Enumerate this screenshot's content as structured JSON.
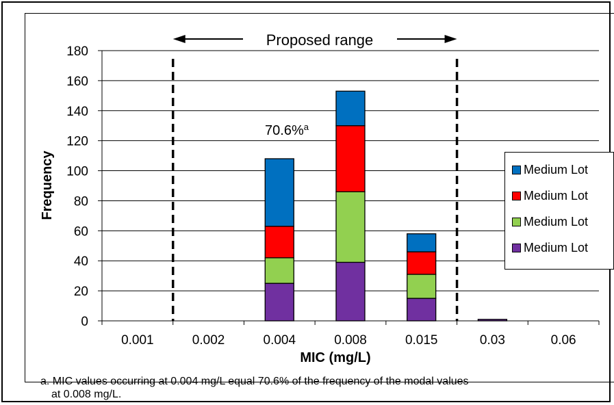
{
  "chart_data": {
    "type": "bar",
    "stacked": true,
    "categories": [
      "0.001",
      "0.002",
      "0.004",
      "0.008",
      "0.015",
      "0.03",
      "0.06"
    ],
    "series": [
      {
        "name": "Medium Lot",
        "color": "#7030a0",
        "values": [
          0,
          0,
          25,
          39,
          15,
          1,
          0
        ]
      },
      {
        "name": "Medium Lot",
        "color": "#92d050",
        "values": [
          0,
          0,
          17,
          47,
          16,
          0,
          0
        ]
      },
      {
        "name": "Medium Lot",
        "color": "#ff0000",
        "values": [
          0,
          0,
          21,
          44,
          15,
          0,
          0
        ]
      },
      {
        "name": "Medium Lot",
        "color": "#0070c0",
        "values": [
          0,
          0,
          45,
          23,
          12,
          0,
          0
        ]
      }
    ],
    "legend_order": [
      3,
      2,
      1,
      0
    ],
    "xlabel": "MIC (mg/L)",
    "ylabel": "Frequency",
    "ylim": [
      0,
      180
    ],
    "yticks": [
      0,
      20,
      40,
      60,
      80,
      100,
      120,
      140,
      160,
      180
    ],
    "grid": true,
    "legend_position": "right",
    "proposed_range": {
      "label": "Proposed range",
      "from_between": [
        "0.001",
        "0.002"
      ],
      "to_between": [
        "0.015",
        "0.03"
      ]
    },
    "annotation": {
      "text": "70.6%",
      "superscript": "a",
      "category": "0.004"
    }
  },
  "footnote": {
    "line1": "a. MIC values occurring at 0.004 mg/L equal 70.6% of the frequency of the modal values",
    "line2": "at 0.008 mg/L."
  }
}
